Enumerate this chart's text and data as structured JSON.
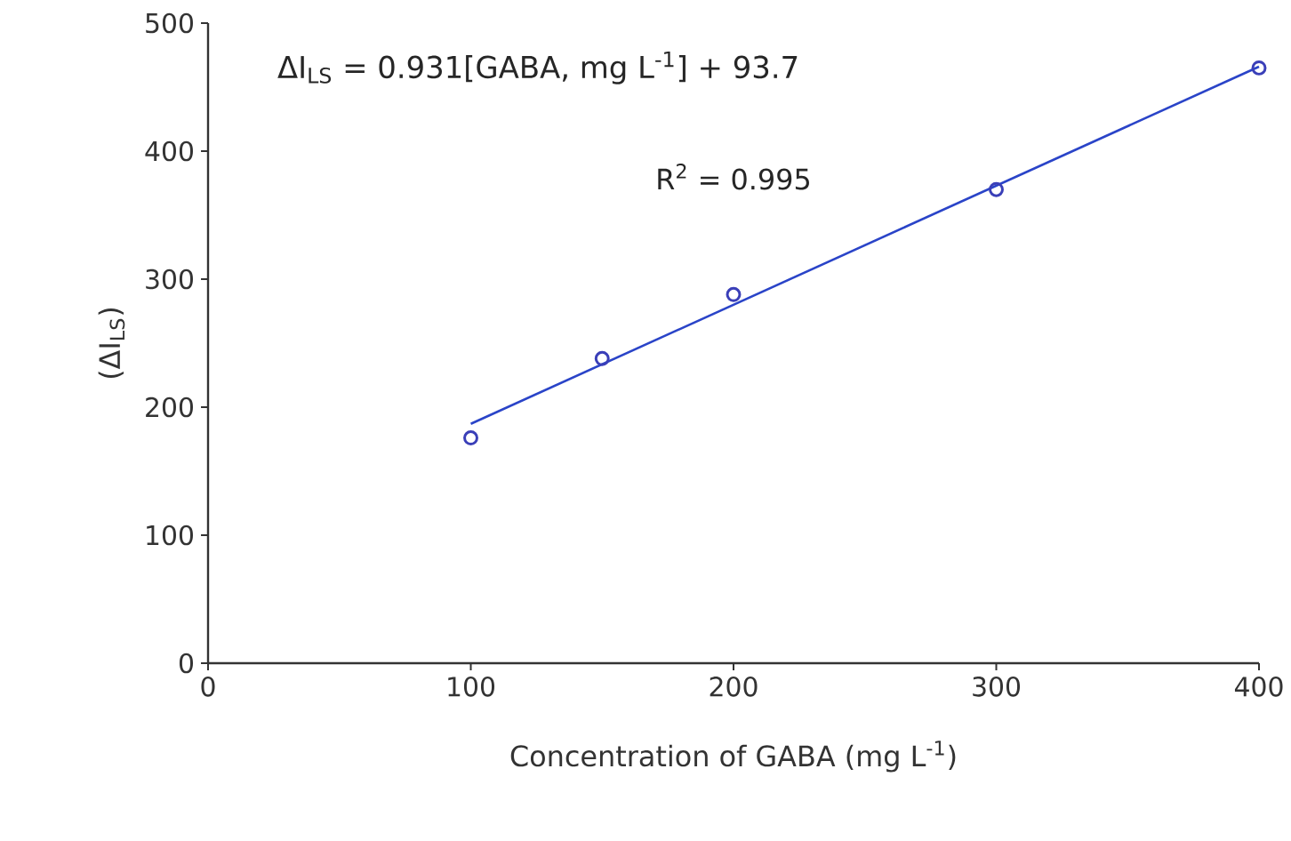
{
  "chart_data": {
    "type": "scatter",
    "xlabel": "Concentration of GABA (mg L$^{-1}$)",
    "ylabel": "(ΔI$_{LS}$)",
    "annotations": [
      "ΔI$_{LS}$ =  0.931[GABA, mg L$^{-1}$] + 93.7",
      "R$^{2}$ = 0.995"
    ],
    "series": [
      {
        "color": "#3a3fb8",
        "marker": "circle",
        "x": [
          100,
          150,
          200,
          300,
          400
        ],
        "values": [
          176,
          238,
          288,
          370,
          465
        ]
      },
      {
        "type": "line",
        "color": "#2a44c8",
        "line_style": "solid",
        "marker": "none",
        "x": [
          100,
          400
        ],
        "values": [
          187,
          466
        ]
      }
    ],
    "xlim": [
      0,
      400
    ],
    "ylim": [
      0,
      500
    ],
    "xticks": [
      0,
      100,
      200,
      300,
      400
    ],
    "yticks": [
      0,
      100,
      200,
      300,
      400,
      500
    ],
    "grid": false
  }
}
